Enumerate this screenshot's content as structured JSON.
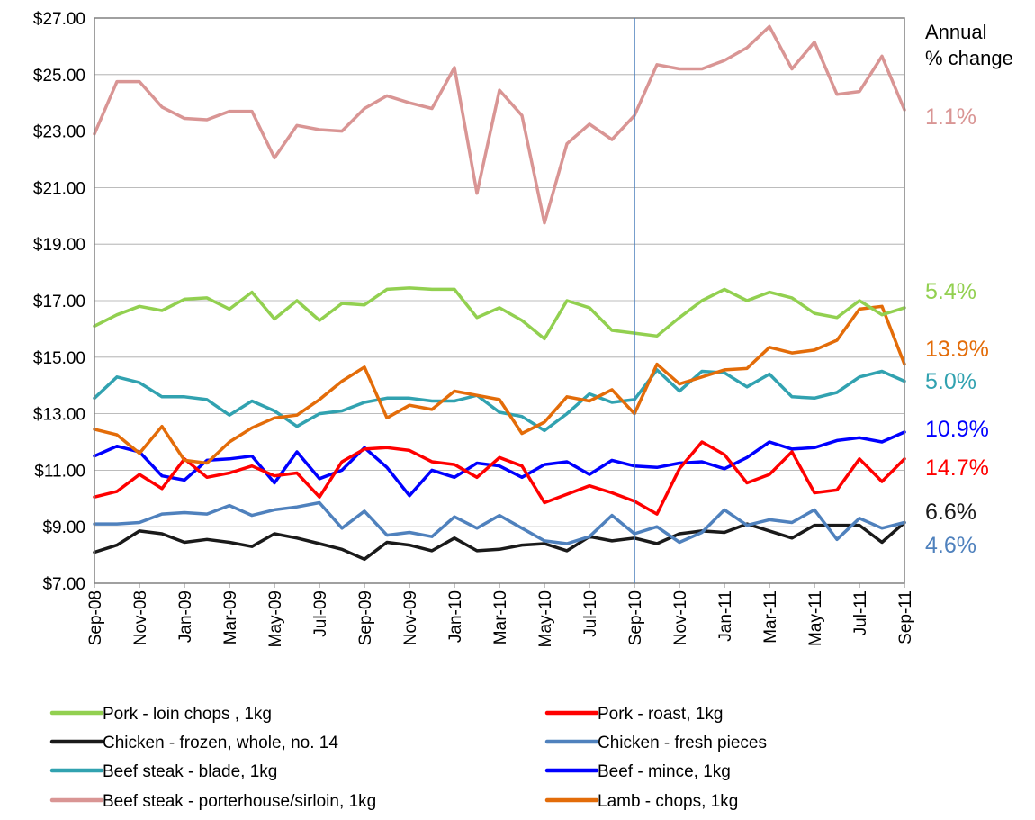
{
  "chart_data": {
    "type": "line",
    "x": [
      "Sep-08",
      "Oct-08",
      "Nov-08",
      "Dec-08",
      "Jan-09",
      "Feb-09",
      "Mar-09",
      "Apr-09",
      "May-09",
      "Jun-09",
      "Jul-09",
      "Aug-09",
      "Sep-09",
      "Oct-09",
      "Nov-09",
      "Dec-09",
      "Jan-10",
      "Feb-10",
      "Mar-10",
      "Apr-10",
      "May-10",
      "Jun-10",
      "Jul-10",
      "Aug-10",
      "Sep-10",
      "Oct-10",
      "Nov-10",
      "Dec-10",
      "Jan-11",
      "Feb-11",
      "Mar-11",
      "Apr-11",
      "May-11",
      "Jun-11",
      "Jul-11",
      "Aug-11",
      "Sep-11"
    ],
    "x_tick_labels": [
      "Sep-08",
      "Nov-08",
      "Jan-09",
      "Mar-09",
      "May-09",
      "Jul-09",
      "Sep-09",
      "Nov-09",
      "Jan-10",
      "Mar-10",
      "May-10",
      "Jul-10",
      "Sep-10",
      "Nov-10",
      "Jan-11",
      "Mar-11",
      "May-11",
      "Jul-11",
      "Sep-11"
    ],
    "y_tick_labels": [
      "$7.00",
      "$9.00",
      "$11.00",
      "$13.00",
      "$15.00",
      "$17.00",
      "$19.00",
      "$21.00",
      "$23.00",
      "$25.00",
      "$27.00"
    ],
    "ylim": [
      7,
      27
    ],
    "grid": "horizontal",
    "vertical_marker": "Sep-10",
    "annotation_title": [
      "Annual",
      "% change"
    ],
    "series": [
      {
        "name": "Pork - loin chops , 1kg",
        "color": "#92d050",
        "change": "5.4%",
        "values": [
          16.1,
          16.5,
          16.8,
          16.65,
          17.05,
          17.1,
          16.7,
          17.3,
          16.35,
          17.0,
          16.3,
          16.9,
          16.85,
          17.4,
          17.45,
          17.4,
          17.4,
          16.4,
          16.75,
          16.3,
          15.65,
          17.0,
          16.75,
          15.95,
          15.85,
          15.75,
          16.4,
          17.0,
          17.4,
          17.0,
          17.3,
          17.1,
          16.55,
          16.4,
          17.0,
          16.5,
          16.75
        ]
      },
      {
        "name": "Pork - roast, 1kg",
        "color": "#ff0000",
        "change": "14.7%",
        "values": [
          10.05,
          10.25,
          10.85,
          10.35,
          11.4,
          10.75,
          10.9,
          11.15,
          10.8,
          10.9,
          10.05,
          11.3,
          11.75,
          11.8,
          11.7,
          11.3,
          11.2,
          10.75,
          11.45,
          11.15,
          9.85,
          10.15,
          10.45,
          10.2,
          9.9,
          9.45,
          11.05,
          12.0,
          11.55,
          10.55,
          10.85,
          11.65,
          10.2,
          10.3,
          11.4,
          10.6,
          11.4
        ]
      },
      {
        "name": "Chicken - frozen, whole, no. 14",
        "color": "#1a1a1a",
        "change": "6.6%",
        "values": [
          8.1,
          8.35,
          8.85,
          8.75,
          8.45,
          8.55,
          8.45,
          8.3,
          8.75,
          8.6,
          8.4,
          8.2,
          7.85,
          8.45,
          8.35,
          8.15,
          8.6,
          8.15,
          8.2,
          8.35,
          8.4,
          8.15,
          8.65,
          8.5,
          8.6,
          8.4,
          8.75,
          8.85,
          8.8,
          9.1,
          8.85,
          8.6,
          9.05,
          9.05,
          9.05,
          8.45,
          9.15
        ]
      },
      {
        "name": "Chicken - fresh pieces",
        "color": "#4f81bd",
        "change": "4.6%",
        "values": [
          9.1,
          9.1,
          9.15,
          9.45,
          9.5,
          9.45,
          9.75,
          9.4,
          9.6,
          9.7,
          9.85,
          8.95,
          9.55,
          8.7,
          8.8,
          8.65,
          9.35,
          8.95,
          9.4,
          8.95,
          8.5,
          8.4,
          8.65,
          9.4,
          8.75,
          9.0,
          8.45,
          8.8,
          9.6,
          9.05,
          9.25,
          9.15,
          9.6,
          8.55,
          9.3,
          8.95,
          9.15
        ]
      },
      {
        "name": "Beef steak - blade, 1kg",
        "color": "#31a2b0",
        "change": "5.0%",
        "values": [
          13.55,
          14.3,
          14.1,
          13.6,
          13.6,
          13.5,
          12.95,
          13.45,
          13.1,
          12.55,
          13.0,
          13.1,
          13.4,
          13.55,
          13.55,
          13.45,
          13.45,
          13.65,
          13.05,
          12.9,
          12.4,
          13.0,
          13.7,
          13.4,
          13.5,
          14.55,
          13.8,
          14.5,
          14.45,
          13.95,
          14.4,
          13.6,
          13.55,
          13.75,
          14.3,
          14.5,
          14.15
        ]
      },
      {
        "name": "Beef - mince, 1kg",
        "color": "#0000ff",
        "change": "10.9%",
        "values": [
          11.5,
          11.85,
          11.65,
          10.8,
          10.65,
          11.35,
          11.4,
          11.5,
          10.55,
          11.65,
          10.7,
          11.0,
          11.8,
          11.1,
          10.1,
          11.0,
          10.75,
          11.25,
          11.15,
          10.75,
          11.2,
          11.3,
          10.85,
          11.35,
          11.15,
          11.1,
          11.25,
          11.3,
          11.05,
          11.45,
          12.0,
          11.75,
          11.8,
          12.05,
          12.15,
          12.0,
          12.35
        ]
      },
      {
        "name": "Beef steak - porterhouse/sirloin, 1kg",
        "color": "#d99594",
        "change": "1.1%",
        "values": [
          22.9,
          24.75,
          24.75,
          23.85,
          23.45,
          23.4,
          23.7,
          23.7,
          22.05,
          23.2,
          23.05,
          23.0,
          23.8,
          24.25,
          24.0,
          23.8,
          25.25,
          20.8,
          24.45,
          23.55,
          19.75,
          22.55,
          23.25,
          22.7,
          23.55,
          25.35,
          25.2,
          25.2,
          25.5,
          25.95,
          26.7,
          25.2,
          26.15,
          24.3,
          24.4,
          25.65,
          23.75
        ]
      },
      {
        "name": "Lamb - chops, 1kg",
        "color": "#e36c09",
        "change": "13.9%",
        "values": [
          12.45,
          12.25,
          11.6,
          12.55,
          11.35,
          11.25,
          12.0,
          12.5,
          12.85,
          12.95,
          13.5,
          14.15,
          14.65,
          12.85,
          13.3,
          13.15,
          13.8,
          13.65,
          13.5,
          12.3,
          12.7,
          13.6,
          13.45,
          13.85,
          13.0,
          14.75,
          14.05,
          14.3,
          14.55,
          14.6,
          15.35,
          15.15,
          15.25,
          15.6,
          16.7,
          16.8,
          14.75
        ]
      }
    ]
  }
}
